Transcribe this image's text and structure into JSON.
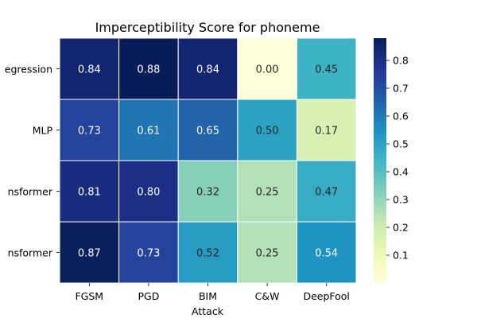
{
  "chart_data": {
    "type": "heatmap",
    "title": "Imperceptibility Score for phoneme",
    "xlabel": "Attack",
    "ylabel": "",
    "x_categories": [
      "FGSM",
      "PGD",
      "BIM",
      "C&W",
      "DeepFool"
    ],
    "y_categories": [
      "Logistic Regression",
      "MLP",
      "Transformer",
      "TabTransformer"
    ],
    "y_tick_labels_visible": [
      "egression",
      "MLP",
      "nsformer",
      "nsformer"
    ],
    "values": [
      [
        0.84,
        0.88,
        0.84,
        0.0,
        0.45
      ],
      [
        0.73,
        0.61,
        0.65,
        0.5,
        0.17
      ],
      [
        0.81,
        0.8,
        0.32,
        0.25,
        0.47
      ],
      [
        0.87,
        0.73,
        0.52,
        0.25,
        0.54
      ]
    ],
    "cell_labels": [
      [
        "0.84",
        "0.88",
        "0.84",
        "0.00",
        "0.45"
      ],
      [
        "0.73",
        "0.61",
        "0.65",
        "0.50",
        "0.17"
      ],
      [
        "0.81",
        "0.80",
        "0.32",
        "0.25",
        "0.47"
      ],
      [
        "0.87",
        "0.73",
        "0.52",
        "0.25",
        "0.54"
      ]
    ],
    "colormap": "YlGnBu",
    "vmin": 0.0,
    "vmax": 0.88,
    "colorbar_ticks": [
      0.1,
      0.2,
      0.3,
      0.4,
      0.5,
      0.6,
      0.7,
      0.8
    ],
    "colorbar_tick_labels": [
      "0.1",
      "0.2",
      "0.3",
      "0.4",
      "0.5",
      "0.6",
      "0.7",
      "0.8"
    ],
    "colorbar_stops": [
      {
        "value": 0.0,
        "color": "#ffffd9"
      },
      {
        "value": 0.125,
        "color": "#edf8b1"
      },
      {
        "value": 0.25,
        "color": "#c7e9b4"
      },
      {
        "value": 0.375,
        "color": "#7fcdbb"
      },
      {
        "value": 0.5,
        "color": "#41b6c4"
      },
      {
        "value": 0.625,
        "color": "#1d91c0"
      },
      {
        "value": 0.75,
        "color": "#225ea8"
      },
      {
        "value": 0.875,
        "color": "#253494"
      },
      {
        "value": 1.0,
        "color": "#081d58"
      }
    ],
    "grid": false,
    "colorbar_position": "right"
  }
}
